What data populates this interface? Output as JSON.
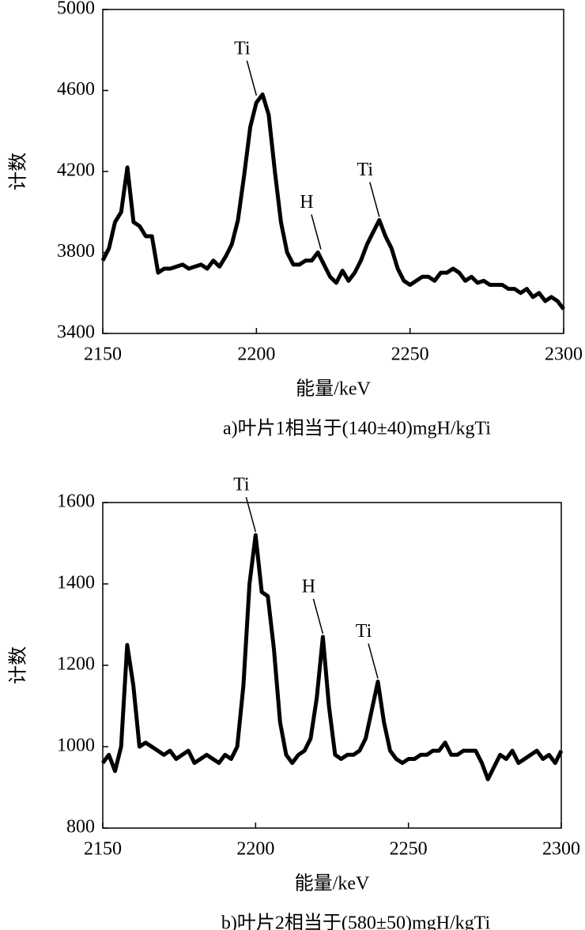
{
  "chart_data": [
    {
      "type": "line",
      "ylabel": "计数",
      "xlabel": "能量/keV",
      "caption": "a)叶片1相当于(140±40)mgH/kgTi",
      "xlim": [
        2150,
        2300
      ],
      "xticks": [
        2150,
        2200,
        2250,
        2300
      ],
      "ylim": [
        3400,
        5000
      ],
      "yticks": [
        3400,
        3800,
        4200,
        4600,
        5000
      ],
      "x": [
        2150,
        2152,
        2154,
        2156,
        2158,
        2160,
        2162,
        2164,
        2166,
        2168,
        2170,
        2172,
        2174,
        2176,
        2178,
        2180,
        2182,
        2184,
        2186,
        2188,
        2190,
        2192,
        2194,
        2196,
        2198,
        2200,
        2202,
        2204,
        2206,
        2208,
        2210,
        2212,
        2214,
        2216,
        2218,
        2220,
        2222,
        2224,
        2226,
        2228,
        2230,
        2232,
        2234,
        2236,
        2238,
        2240,
        2242,
        2244,
        2246,
        2248,
        2250,
        2252,
        2254,
        2256,
        2258,
        2260,
        2262,
        2264,
        2266,
        2268,
        2270,
        2272,
        2274,
        2276,
        2278,
        2280,
        2282,
        2284,
        2286,
        2288,
        2290,
        2292,
        2294,
        2296,
        2298,
        2300
      ],
      "series": [
        {
          "color": "#000000",
          "values": [
            3760,
            3820,
            3950,
            4000,
            4220,
            3950,
            3930,
            3880,
            3880,
            3700,
            3720,
            3720,
            3730,
            3740,
            3720,
            3730,
            3740,
            3720,
            3760,
            3730,
            3780,
            3840,
            3960,
            4180,
            4420,
            4540,
            4580,
            4480,
            4200,
            3950,
            3800,
            3740,
            3740,
            3760,
            3760,
            3800,
            3740,
            3680,
            3650,
            3710,
            3660,
            3700,
            3760,
            3840,
            3900,
            3960,
            3880,
            3820,
            3720,
            3660,
            3640,
            3660,
            3680,
            3680,
            3660,
            3700,
            3700,
            3720,
            3700,
            3660,
            3680,
            3650,
            3660,
            3640,
            3640,
            3640,
            3620,
            3620,
            3600,
            3620,
            3580,
            3600,
            3560,
            3580,
            3560,
            3520
          ]
        }
      ],
      "annotations": [
        {
          "text": "Ti",
          "x": 2200,
          "y": 4560
        },
        {
          "text": "H",
          "x": 2221,
          "y": 3800
        },
        {
          "text": "Ti",
          "x": 2240,
          "y": 3960
        }
      ]
    },
    {
      "type": "line",
      "ylabel": "计数",
      "xlabel": "能量/keV",
      "caption": "b)叶片2相当于(580±50)mgH/kgTi",
      "xlim": [
        2150,
        2300
      ],
      "xticks": [
        2150,
        2200,
        2250,
        2300
      ],
      "ylim": [
        800,
        1600
      ],
      "yticks": [
        800,
        1000,
        1200,
        1400,
        1600
      ],
      "x": [
        2150,
        2152,
        2154,
        2156,
        2158,
        2160,
        2162,
        2164,
        2166,
        2168,
        2170,
        2172,
        2174,
        2176,
        2178,
        2180,
        2182,
        2184,
        2186,
        2188,
        2190,
        2192,
        2194,
        2196,
        2198,
        2200,
        2202,
        2204,
        2206,
        2208,
        2210,
        2212,
        2214,
        2216,
        2218,
        2220,
        2222,
        2224,
        2226,
        2228,
        2230,
        2232,
        2234,
        2236,
        2238,
        2240,
        2242,
        2244,
        2246,
        2248,
        2250,
        2252,
        2254,
        2256,
        2258,
        2260,
        2262,
        2264,
        2266,
        2268,
        2270,
        2272,
        2274,
        2276,
        2278,
        2280,
        2282,
        2284,
        2286,
        2288,
        2290,
        2292,
        2294,
        2296,
        2298,
        2300
      ],
      "series": [
        {
          "color": "#000000",
          "values": [
            960,
            980,
            940,
            1000,
            1250,
            1150,
            1000,
            1010,
            1000,
            990,
            980,
            990,
            970,
            980,
            990,
            960,
            970,
            980,
            970,
            960,
            980,
            970,
            1000,
            1150,
            1400,
            1520,
            1380,
            1370,
            1240,
            1060,
            980,
            960,
            980,
            990,
            1020,
            1120,
            1270,
            1100,
            980,
            970,
            980,
            980,
            990,
            1020,
            1090,
            1160,
            1060,
            990,
            970,
            960,
            970,
            970,
            980,
            980,
            990,
            990,
            1010,
            980,
            980,
            990,
            990,
            990,
            960,
            920,
            950,
            980,
            970,
            990,
            960,
            970,
            980,
            990,
            970,
            980,
            960,
            990
          ]
        }
      ],
      "annotations": [
        {
          "text": "Ti",
          "x": 2200,
          "y": 1520
        },
        {
          "text": "H",
          "x": 2222,
          "y": 1270
        },
        {
          "text": "Ti",
          "x": 2240,
          "y": 1160
        }
      ]
    }
  ]
}
